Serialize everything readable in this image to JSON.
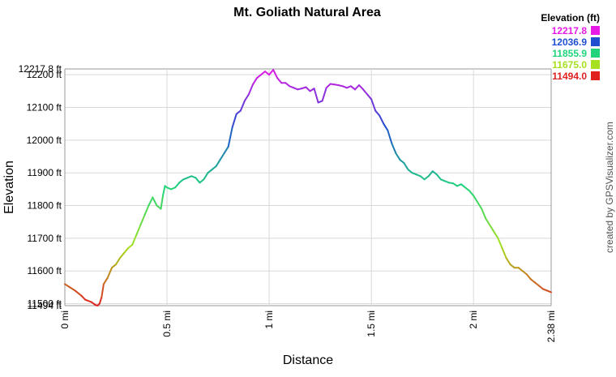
{
  "chart_data": {
    "type": "line",
    "title": "Mt. Goliath Natural Area",
    "xlabel": "Distance",
    "ylabel": "Elevation",
    "xlim": [
      0,
      2.38
    ],
    "ylim": [
      11494,
      12217.8
    ],
    "grid": true,
    "x_ticks": [
      {
        "v": 0,
        "label": "0 mi"
      },
      {
        "v": 0.5,
        "label": "0.5 mi"
      },
      {
        "v": 1,
        "label": "1 mi"
      },
      {
        "v": 1.5,
        "label": "1.5 mi"
      },
      {
        "v": 2,
        "label": "2 mi"
      },
      {
        "v": 2.38,
        "label": "2.38 mi"
      }
    ],
    "y_ticks": [
      {
        "v": 11494,
        "label": "11494 ft"
      },
      {
        "v": 11500,
        "label": "11500 ft"
      },
      {
        "v": 11600,
        "label": "11600 ft"
      },
      {
        "v": 11700,
        "label": "11700 ft"
      },
      {
        "v": 11800,
        "label": "11800 ft"
      },
      {
        "v": 11900,
        "label": "11900 ft"
      },
      {
        "v": 12000,
        "label": "12000 ft"
      },
      {
        "v": 12100,
        "label": "12100 ft"
      },
      {
        "v": 12200,
        "label": "12200 ft"
      },
      {
        "v": 12217.8,
        "label": "12217.8 ft"
      }
    ],
    "legend": {
      "title": "Elevation (ft)",
      "placement": "top-right",
      "entries": [
        {
          "label": "12217.8",
          "color": "#e619e6"
        },
        {
          "label": "12036.9",
          "color": "#1f4fd0"
        },
        {
          "label": "11855.9",
          "color": "#1fd47a"
        },
        {
          "label": "11675.0",
          "color": "#a6e01f"
        },
        {
          "label": "11494.0",
          "color": "#e01f1f"
        }
      ]
    },
    "series": [
      {
        "x": [
          0,
          0.02,
          0.05,
          0.08,
          0.1,
          0.13,
          0.15,
          0.16,
          0.17,
          0.18,
          0.19,
          0.21,
          0.23,
          0.25,
          0.27,
          0.29,
          0.31,
          0.33,
          0.35,
          0.37,
          0.39,
          0.41,
          0.43,
          0.45,
          0.47,
          0.48,
          0.49,
          0.5,
          0.52,
          0.54,
          0.56,
          0.58,
          0.6,
          0.62,
          0.64,
          0.66,
          0.68,
          0.7,
          0.72,
          0.74,
          0.76,
          0.78,
          0.8,
          0.82,
          0.84,
          0.86,
          0.88,
          0.9,
          0.92,
          0.94,
          0.96,
          0.98,
          1.0,
          1.02,
          1.04,
          1.06,
          1.08,
          1.1,
          1.12,
          1.14,
          1.16,
          1.18,
          1.2,
          1.22,
          1.24,
          1.26,
          1.28,
          1.3,
          1.32,
          1.34,
          1.36,
          1.38,
          1.4,
          1.42,
          1.44,
          1.46,
          1.48,
          1.5,
          1.52,
          1.54,
          1.56,
          1.58,
          1.6,
          1.62,
          1.64,
          1.66,
          1.68,
          1.7,
          1.72,
          1.74,
          1.76,
          1.78,
          1.8,
          1.82,
          1.84,
          1.86,
          1.88,
          1.9,
          1.92,
          1.94,
          1.96,
          1.98,
          2.0,
          2.02,
          2.04,
          2.06,
          2.08,
          2.1,
          2.12,
          2.14,
          2.16,
          2.18,
          2.2,
          2.22,
          2.24,
          2.26,
          2.28,
          2.3,
          2.32,
          2.34,
          2.36,
          2.38
        ],
        "y": [
          11560,
          11552,
          11540,
          11525,
          11512,
          11505,
          11496,
          11494,
          11500,
          11520,
          11560,
          11580,
          11610,
          11620,
          11640,
          11655,
          11670,
          11680,
          11710,
          11740,
          11770,
          11800,
          11825,
          11800,
          11790,
          11830,
          11860,
          11855,
          11850,
          11855,
          11870,
          11880,
          11885,
          11890,
          11885,
          11870,
          11880,
          11900,
          11910,
          11920,
          11940,
          11960,
          11980,
          12040,
          12080,
          12090,
          12120,
          12140,
          12170,
          12190,
          12200,
          12210,
          12200,
          12215,
          12190,
          12175,
          12175,
          12165,
          12160,
          12155,
          12158,
          12162,
          12150,
          12158,
          12115,
          12120,
          12160,
          12172,
          12170,
          12168,
          12165,
          12160,
          12165,
          12155,
          12168,
          12155,
          12140,
          12125,
          12090,
          12075,
          12050,
          12030,
          11990,
          11960,
          11940,
          11930,
          11910,
          11900,
          11895,
          11890,
          11880,
          11890,
          11905,
          11895,
          11880,
          11875,
          11870,
          11868,
          11860,
          11865,
          11855,
          11845,
          11830,
          11810,
          11790,
          11760,
          11740,
          11720,
          11700,
          11670,
          11640,
          11620,
          11610,
          11610,
          11600,
          11590,
          11575,
          11565,
          11555,
          11545,
          11540,
          11535
        ]
      }
    ]
  },
  "side_text": "created by GPSVisualizer.com"
}
